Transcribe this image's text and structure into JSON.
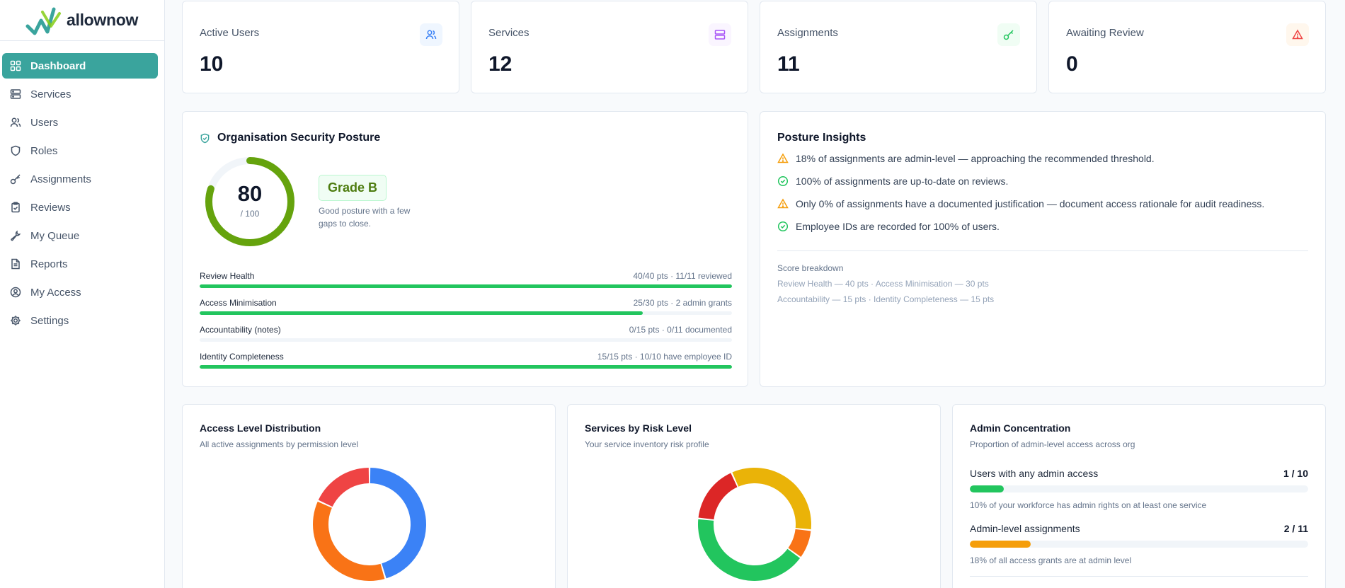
{
  "brand": {
    "name": "allownow",
    "accent": "#3aa49d"
  },
  "sidebar": {
    "items": [
      {
        "label": "Dashboard",
        "icon": "grid-icon",
        "active": true
      },
      {
        "label": "Services",
        "icon": "server-icon"
      },
      {
        "label": "Users",
        "icon": "users-icon"
      },
      {
        "label": "Roles",
        "icon": "shield-icon"
      },
      {
        "label": "Assignments",
        "icon": "key-icon"
      },
      {
        "label": "Reviews",
        "icon": "clipboard-check-icon"
      },
      {
        "label": "My Queue",
        "icon": "wrench-icon"
      },
      {
        "label": "Reports",
        "icon": "file-text-icon"
      },
      {
        "label": "My Access",
        "icon": "user-circle-icon"
      },
      {
        "label": "Settings",
        "icon": "gear-icon"
      }
    ]
  },
  "stats": [
    {
      "label": "Active Users",
      "value": "10",
      "icon": "users-icon",
      "color": "#3b82f6"
    },
    {
      "label": "Services",
      "value": "12",
      "icon": "server-icon",
      "color": "#a855f7"
    },
    {
      "label": "Assignments",
      "value": "11",
      "icon": "key-icon",
      "color": "#22c55e"
    },
    {
      "label": "Awaiting Review",
      "value": "0",
      "icon": "warning-icon",
      "color": "#ef4444"
    }
  ],
  "posture": {
    "title": "Organisation Security Posture",
    "score": "80",
    "max_label": "/ 100",
    "score_fraction": 0.8,
    "grade": "Grade B",
    "description": "Good posture with a few gaps to close.",
    "metrics": [
      {
        "name": "Review Health",
        "pts": "40/40 pts · 11/11 reviewed",
        "fraction": 1.0
      },
      {
        "name": "Access Minimisation",
        "pts": "25/30 pts · 2 admin grants",
        "fraction": 0.833
      },
      {
        "name": "Accountability (notes)",
        "pts": "0/15 pts · 0/11 documented",
        "fraction": 0.0
      },
      {
        "name": "Identity Completeness",
        "pts": "15/15 pts · 10/10 have employee ID",
        "fraction": 1.0
      }
    ]
  },
  "insights": {
    "title": "Posture Insights",
    "items": [
      {
        "text": "18% of assignments are admin-level — approaching the recommended threshold.",
        "type": "warning"
      },
      {
        "text": "100% of assignments are up-to-date on reviews.",
        "type": "ok"
      },
      {
        "text": "Only 0% of assignments have a documented justification — document access rationale for audit readiness.",
        "type": "warning"
      },
      {
        "text": "Employee IDs are recorded for 100% of users.",
        "type": "ok"
      }
    ],
    "breakdown_title": "Score breakdown",
    "breakdown_line1": "Review Health — 40 pts · Access Minimisation — 30 pts",
    "breakdown_line2": "Accountability — 15 pts · Identity Completeness — 15 pts"
  },
  "access_chart": {
    "title": "Access Level Distribution",
    "subtitle": "All active assignments by permission level"
  },
  "risk_chart": {
    "title": "Services by Risk Level",
    "subtitle": "Your service inventory risk profile"
  },
  "chart_data": [
    {
      "type": "pie",
      "title": "Access Level Distribution",
      "series": [
        {
          "values": [
            5,
            4,
            2
          ],
          "colors": [
            "#3b82f6",
            "#f97316",
            "#ef4444"
          ]
        }
      ]
    },
    {
      "type": "pie",
      "title": "Services by Risk Level",
      "series": [
        {
          "values": [
            4,
            1,
            5,
            2
          ],
          "colors": [
            "#eab308",
            "#f97316",
            "#22c55e",
            "#dc2626"
          ]
        }
      ]
    }
  ],
  "admin": {
    "title": "Admin Concentration",
    "subtitle": "Proportion of admin-level access across org",
    "rows": [
      {
        "label": "Users with any admin access",
        "value": "1 / 10",
        "fraction": 0.1,
        "color": "#22c55e",
        "note": "10% of your workforce has admin rights on at least one service"
      },
      {
        "label": "Admin-level assignments",
        "value": "2 / 11",
        "fraction": 0.18,
        "color": "#f59e0b",
        "note": "18% of all access grants are at admin level"
      }
    ]
  }
}
